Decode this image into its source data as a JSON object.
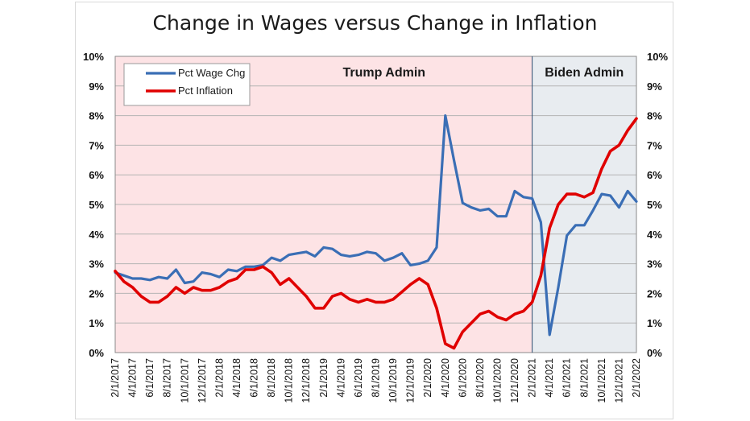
{
  "chart_data": {
    "type": "line",
    "title": "Change in Wages versus Change in Inflation",
    "xlabel": "",
    "ylabel": "",
    "ylim": [
      0,
      10
    ],
    "y_ticks": [
      "0%",
      "1%",
      "2%",
      "3%",
      "4%",
      "5%",
      "6%",
      "7%",
      "8%",
      "9%",
      "10%"
    ],
    "x_ticks": [
      "2/1/2017",
      "4/1/2017",
      "6/1/2017",
      "8/1/2017",
      "10/1/2017",
      "12/1/2017",
      "2/1/2018",
      "4/1/2018",
      "6/1/2018",
      "8/1/2018",
      "10/1/2018",
      "12/1/2018",
      "2/1/2019",
      "4/1/2019",
      "6/1/2019",
      "8/1/2019",
      "10/1/2019",
      "12/1/2019",
      "2/1/2020",
      "4/1/2020",
      "6/1/2020",
      "8/1/2020",
      "10/1/2020",
      "12/1/2020",
      "2/1/2021",
      "4/1/2021",
      "6/1/2021",
      "8/1/2021",
      "10/1/2021",
      "12/1/2021",
      "2/1/2022"
    ],
    "regions": [
      {
        "label": "Trump Admin",
        "start_index": 0,
        "end_index": 48,
        "color": "#fde3e5"
      },
      {
        "label": "Biden Admin",
        "start_index": 48,
        "end_index": 60,
        "color": "#e8ecf0"
      }
    ],
    "legend_position": "top-left",
    "series": [
      {
        "name": "Pct Wage Chg",
        "color": "#3a6eb5",
        "values": [
          2.7,
          2.6,
          2.5,
          2.5,
          2.45,
          2.55,
          2.5,
          2.8,
          2.35,
          2.4,
          2.7,
          2.65,
          2.55,
          2.8,
          2.75,
          2.9,
          2.9,
          2.95,
          3.2,
          3.1,
          3.3,
          3.35,
          3.4,
          3.25,
          3.55,
          3.5,
          3.3,
          3.25,
          3.3,
          3.4,
          3.35,
          3.1,
          3.2,
          3.35,
          2.95,
          3.0,
          3.1,
          3.55,
          8.0,
          6.5,
          5.05,
          4.9,
          4.8,
          4.85,
          4.6,
          4.6,
          5.45,
          5.25,
          5.2,
          4.4,
          0.6,
          2.2,
          3.95,
          4.3,
          4.3,
          4.8,
          5.35,
          5.3,
          4.9,
          5.45,
          5.1
        ]
      },
      {
        "name": "Pct Inflation",
        "color": "#e00000",
        "values": [
          2.75,
          2.4,
          2.2,
          1.9,
          1.7,
          1.7,
          1.9,
          2.2,
          2.0,
          2.2,
          2.1,
          2.1,
          2.2,
          2.4,
          2.5,
          2.8,
          2.8,
          2.9,
          2.7,
          2.3,
          2.5,
          2.2,
          1.9,
          1.5,
          1.5,
          1.9,
          2.0,
          1.8,
          1.7,
          1.8,
          1.7,
          1.7,
          1.8,
          2.05,
          2.3,
          2.5,
          2.3,
          1.5,
          0.3,
          0.15,
          0.7,
          1.0,
          1.3,
          1.4,
          1.2,
          1.1,
          1.3,
          1.4,
          1.7,
          2.6,
          4.2,
          5.0,
          5.35,
          5.35,
          5.25,
          5.4,
          6.2,
          6.8,
          7.0,
          7.5,
          7.9
        ]
      }
    ]
  }
}
